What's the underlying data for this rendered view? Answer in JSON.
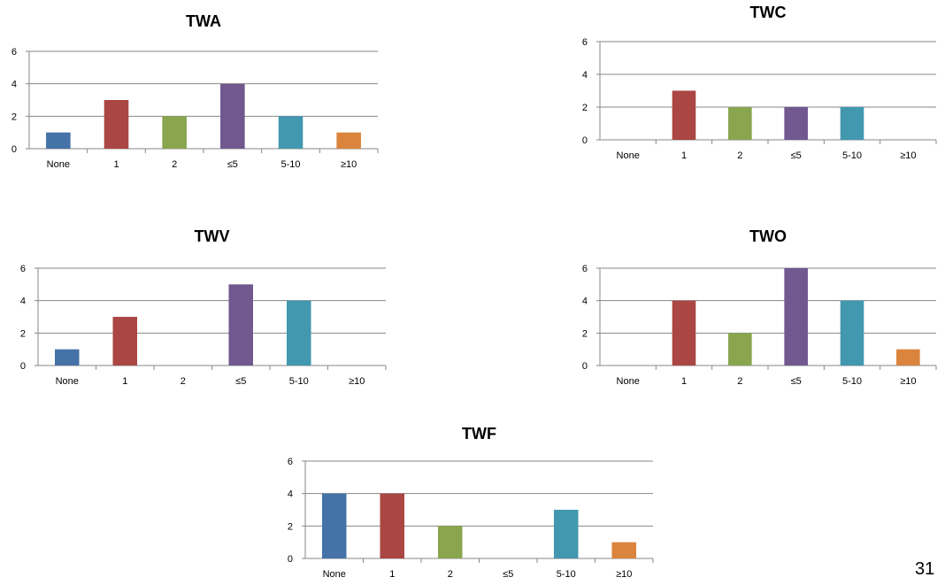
{
  "colors": {
    "bars": [
      "#4572A7",
      "#AA4643",
      "#89A54E",
      "#71588F",
      "#4198AF",
      "#DB843D"
    ],
    "grid": "#878787",
    "axis": "#878787"
  },
  "page_number": "31",
  "chart_data": [
    {
      "type": "bar",
      "title": "TWA",
      "categories": [
        "None",
        "1",
        "2",
        "≤5",
        "5-10",
        "≥10"
      ],
      "values": [
        1,
        3,
        2,
        4,
        2,
        1
      ],
      "yticks": [
        "0",
        "2",
        "4",
        "6"
      ],
      "ylim": [
        0,
        6
      ],
      "grid": true,
      "legend": "none"
    },
    {
      "type": "bar",
      "title": "TWC",
      "categories": [
        "None",
        "1",
        "2",
        "≤5",
        "5-10",
        "≥10"
      ],
      "values": [
        0,
        3,
        2,
        2,
        2,
        0
      ],
      "yticks": [
        "0",
        "2",
        "4",
        "6"
      ],
      "ylim": [
        0,
        6
      ],
      "grid": true,
      "legend": "none"
    },
    {
      "type": "bar",
      "title": "TWV",
      "categories": [
        "None",
        "1",
        "2",
        "≤5",
        "5-10",
        "≥10"
      ],
      "values": [
        1,
        3,
        0,
        5,
        4,
        0
      ],
      "yticks": [
        "0",
        "2",
        "4",
        "6"
      ],
      "ylim": [
        0,
        6
      ],
      "grid": true,
      "legend": "none"
    },
    {
      "type": "bar",
      "title": "TWO",
      "categories": [
        "None",
        "1",
        "2",
        "≤5",
        "5-10",
        "≥10"
      ],
      "values": [
        0,
        4,
        2,
        6,
        4,
        1
      ],
      "yticks": [
        "0",
        "2",
        "4",
        "6"
      ],
      "ylim": [
        0,
        6
      ],
      "grid": true,
      "legend": "none"
    },
    {
      "type": "bar",
      "title": "TWF",
      "categories": [
        "None",
        "1",
        "2",
        "≤5",
        "5-10",
        "≥10"
      ],
      "values": [
        4,
        4,
        2,
        0,
        3,
        1
      ],
      "yticks": [
        "0",
        "2",
        "4",
        "6"
      ],
      "ylim": [
        0,
        6
      ],
      "grid": true,
      "legend": "none"
    }
  ]
}
